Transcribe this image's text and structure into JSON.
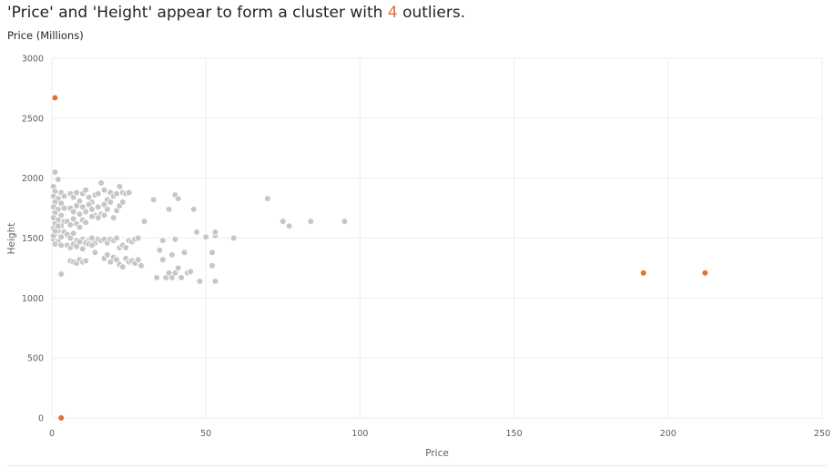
{
  "header": {
    "headline_prefix": "'Price' and 'Height' appear to form a cluster with ",
    "headline_count": "4",
    "headline_suffix": " outliers.",
    "units_label": "Price (Millions)"
  },
  "colors": {
    "cluster": "#c8c6c4",
    "outlier": "#e0732d",
    "grid": "#ededed",
    "text": "#252423",
    "tick": "#605e5c"
  },
  "chart_data": {
    "type": "scatter",
    "xlabel": "Price",
    "ylabel": "Height",
    "xlim": [
      0,
      250
    ],
    "ylim": [
      0,
      3000
    ],
    "x_ticks": [
      0,
      50,
      100,
      150,
      200,
      250
    ],
    "y_ticks": [
      0,
      500,
      1000,
      1500,
      2000,
      2500,
      3000
    ],
    "grid": true,
    "series": [
      {
        "role": "cluster",
        "points": [
          [
            1,
            2050
          ],
          [
            2,
            1990
          ],
          [
            0.5,
            1930
          ],
          [
            1,
            1890
          ],
          [
            3,
            1880
          ],
          [
            0.5,
            1850
          ],
          [
            2,
            1830
          ],
          [
            4,
            1850
          ],
          [
            1,
            1800
          ],
          [
            3,
            1790
          ],
          [
            0.5,
            1760
          ],
          [
            2,
            1740
          ],
          [
            4,
            1750
          ],
          [
            1,
            1710
          ],
          [
            3,
            1690
          ],
          [
            0.5,
            1670
          ],
          [
            2,
            1650
          ],
          [
            4,
            1640
          ],
          [
            1,
            1620
          ],
          [
            3,
            1600
          ],
          [
            0.5,
            1580
          ],
          [
            2,
            1560
          ],
          [
            4,
            1550
          ],
          [
            1,
            1530
          ],
          [
            3,
            1510
          ],
          [
            0.5,
            1490
          ],
          [
            2,
            1470
          ],
          [
            1,
            1450
          ],
          [
            3,
            1440
          ],
          [
            0.5,
            1520
          ],
          [
            1,
            1560
          ],
          [
            2,
            1600
          ],
          [
            6,
            1870
          ],
          [
            7,
            1840
          ],
          [
            8,
            1880
          ],
          [
            9,
            1810
          ],
          [
            10,
            1870
          ],
          [
            11,
            1900
          ],
          [
            12,
            1840
          ],
          [
            13,
            1800
          ],
          [
            14,
            1860
          ],
          [
            15,
            1870
          ],
          [
            16,
            1960
          ],
          [
            17,
            1900
          ],
          [
            18,
            1820
          ],
          [
            19,
            1880
          ],
          [
            20,
            1850
          ],
          [
            21,
            1870
          ],
          [
            22,
            1930
          ],
          [
            23,
            1880
          ],
          [
            24,
            1870
          ],
          [
            25,
            1880
          ],
          [
            6,
            1750
          ],
          [
            7,
            1720
          ],
          [
            8,
            1770
          ],
          [
            9,
            1700
          ],
          [
            10,
            1760
          ],
          [
            11,
            1720
          ],
          [
            12,
            1780
          ],
          [
            13,
            1740
          ],
          [
            14,
            1690
          ],
          [
            15,
            1760
          ],
          [
            16,
            1700
          ],
          [
            17,
            1780
          ],
          [
            18,
            1740
          ],
          [
            19,
            1800
          ],
          [
            20,
            1670
          ],
          [
            21,
            1730
          ],
          [
            22,
            1770
          ],
          [
            23,
            1800
          ],
          [
            5,
            1640
          ],
          [
            6,
            1610
          ],
          [
            7,
            1660
          ],
          [
            8,
            1620
          ],
          [
            9,
            1590
          ],
          [
            10,
            1650
          ],
          [
            11,
            1630
          ],
          [
            13,
            1680
          ],
          [
            15,
            1670
          ],
          [
            17,
            1690
          ],
          [
            5,
            1530
          ],
          [
            6,
            1500
          ],
          [
            7,
            1540
          ],
          [
            8,
            1480
          ],
          [
            9,
            1460
          ],
          [
            10,
            1490
          ],
          [
            11,
            1470
          ],
          [
            12,
            1480
          ],
          [
            13,
            1500
          ],
          [
            14,
            1460
          ],
          [
            15,
            1490
          ],
          [
            16,
            1480
          ],
          [
            17,
            1490
          ],
          [
            18,
            1460
          ],
          [
            19,
            1490
          ],
          [
            20,
            1480
          ],
          [
            21,
            1500
          ],
          [
            22,
            1420
          ],
          [
            23,
            1440
          ],
          [
            24,
            1420
          ],
          [
            25,
            1480
          ],
          [
            26,
            1470
          ],
          [
            27,
            1490
          ],
          [
            28,
            1500
          ],
          [
            5,
            1440
          ],
          [
            6,
            1420
          ],
          [
            7,
            1450
          ],
          [
            8,
            1430
          ],
          [
            9,
            1470
          ],
          [
            10,
            1410
          ],
          [
            11,
            1460
          ],
          [
            12,
            1450
          ],
          [
            13,
            1440
          ],
          [
            6,
            1310
          ],
          [
            7,
            1300
          ],
          [
            8,
            1290
          ],
          [
            9,
            1320
          ],
          [
            10,
            1300
          ],
          [
            11,
            1310
          ],
          [
            14,
            1380
          ],
          [
            17,
            1330
          ],
          [
            18,
            1360
          ],
          [
            19,
            1300
          ],
          [
            20,
            1340
          ],
          [
            21,
            1320
          ],
          [
            22,
            1280
          ],
          [
            23,
            1260
          ],
          [
            24,
            1330
          ],
          [
            25,
            1300
          ],
          [
            26,
            1310
          ],
          [
            27,
            1290
          ],
          [
            28,
            1320
          ],
          [
            29,
            1270
          ],
          [
            30,
            1640
          ],
          [
            33,
            1820
          ],
          [
            34,
            1170
          ],
          [
            35,
            1400
          ],
          [
            36,
            1320
          ],
          [
            36,
            1480
          ],
          [
            37,
            1170
          ],
          [
            38,
            1210
          ],
          [
            38,
            1740
          ],
          [
            39,
            1170
          ],
          [
            39,
            1360
          ],
          [
            40,
            1210
          ],
          [
            40,
            1490
          ],
          [
            40,
            1860
          ],
          [
            41,
            1250
          ],
          [
            41,
            1830
          ],
          [
            42,
            1170
          ],
          [
            43,
            1380
          ],
          [
            44,
            1210
          ],
          [
            45,
            1220
          ],
          [
            46,
            1740
          ],
          [
            47,
            1550
          ],
          [
            48,
            1140
          ],
          [
            50,
            1510
          ],
          [
            52,
            1380
          ],
          [
            52,
            1270
          ],
          [
            53,
            1520
          ],
          [
            53,
            1550
          ],
          [
            53,
            1140
          ],
          [
            59,
            1500
          ],
          [
            70,
            1830
          ],
          [
            75,
            1640
          ],
          [
            77,
            1600
          ],
          [
            84,
            1640
          ],
          [
            95,
            1640
          ],
          [
            3,
            1200
          ]
        ]
      },
      {
        "role": "outliers",
        "points": [
          [
            1,
            2670
          ],
          [
            3,
            0
          ],
          [
            192,
            1210
          ],
          [
            212,
            1210
          ]
        ]
      }
    ]
  }
}
